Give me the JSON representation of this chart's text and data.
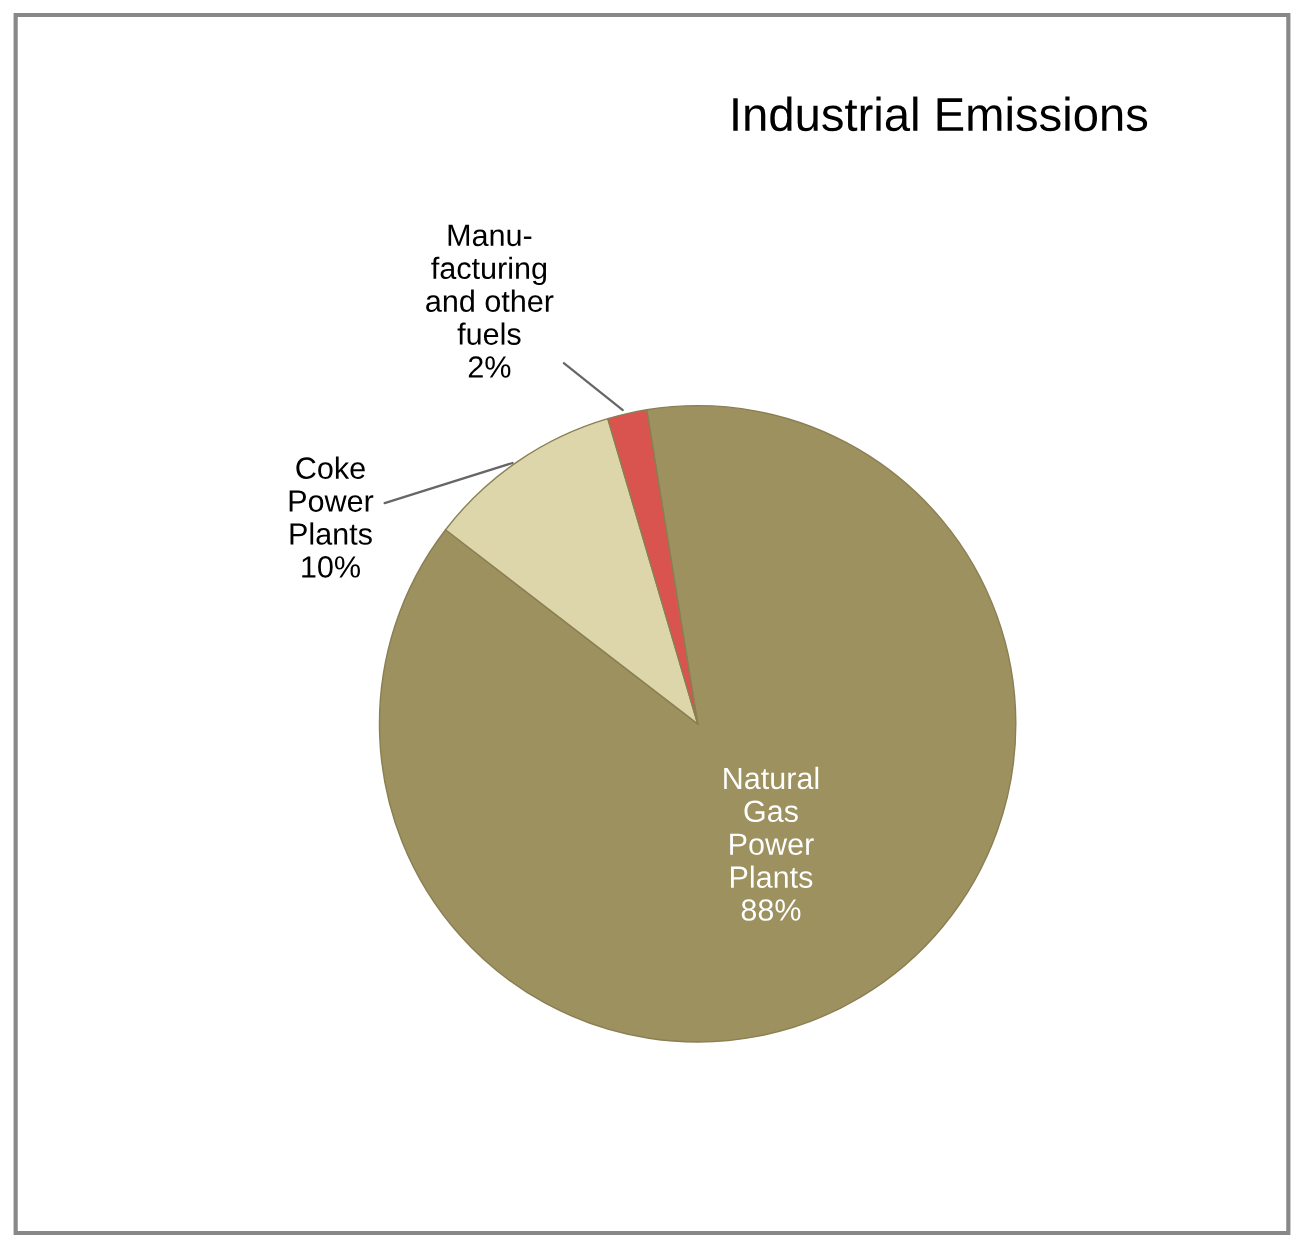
{
  "chart_data": {
    "type": "pie",
    "title": "Industrial Emissions",
    "categories": [
      "Natural\nGas\nPower\nPlants",
      "Coke\nPower\nPlants",
      "Manu-\nfacturing\nand other\nfuels"
    ],
    "values": [
      88,
      10,
      2
    ],
    "colors": [
      "#9d9160",
      "#ddd6aa",
      "#d9534f"
    ],
    "value_labels": [
      "88%",
      "10%",
      "2%"
    ],
    "legend": false
  }
}
